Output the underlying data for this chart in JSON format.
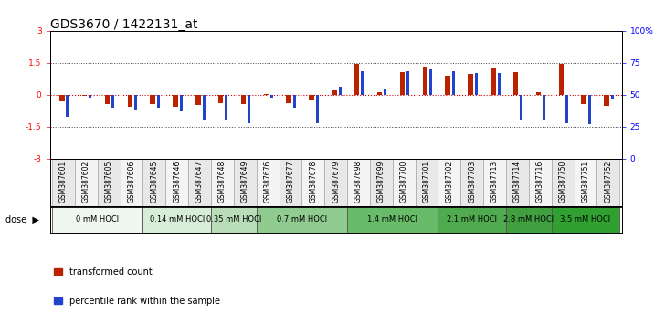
{
  "title": "GDS3670 / 1422131_at",
  "samples": [
    "GSM387601",
    "GSM387602",
    "GSM387605",
    "GSM387606",
    "GSM387645",
    "GSM387646",
    "GSM387647",
    "GSM387648",
    "GSM387649",
    "GSM387676",
    "GSM387677",
    "GSM387678",
    "GSM387679",
    "GSM387698",
    "GSM387699",
    "GSM387700",
    "GSM387701",
    "GSM387702",
    "GSM387703",
    "GSM387713",
    "GSM387714",
    "GSM387716",
    "GSM387750",
    "GSM387751",
    "GSM387752"
  ],
  "red_values": [
    -0.3,
    -0.05,
    -0.45,
    -0.55,
    -0.45,
    -0.55,
    -0.5,
    -0.38,
    -0.45,
    0.05,
    -0.38,
    -0.28,
    0.22,
    1.45,
    0.1,
    1.05,
    1.3,
    0.88,
    0.98,
    1.28,
    1.05,
    0.12,
    1.45,
    -0.42,
    -0.52
  ],
  "blue_values_pct": [
    33,
    48,
    40,
    38,
    40,
    37,
    30,
    30,
    28,
    48,
    40,
    28,
    56,
    68,
    55,
    68,
    70,
    68,
    67,
    67,
    30,
    30,
    28,
    27,
    47
  ],
  "dose_groups": [
    {
      "label": "0 mM HOCl",
      "start": 0,
      "end": 4,
      "color": "#f0f7f0"
    },
    {
      "label": "0.14 mM HOCl",
      "start": 4,
      "end": 7,
      "color": "#d8edd8"
    },
    {
      "label": "0.35 mM HOCl",
      "start": 7,
      "end": 9,
      "color": "#b8ddb8"
    },
    {
      "label": "0.7 mM HOCl",
      "start": 9,
      "end": 13,
      "color": "#90cc90"
    },
    {
      "label": "1.4 mM HOCl",
      "start": 13,
      "end": 17,
      "color": "#68bb68"
    },
    {
      "label": "2.1 mM HOCl",
      "start": 17,
      "end": 20,
      "color": "#50aa50"
    },
    {
      "label": "2.8 mM HOCl",
      "start": 20,
      "end": 22,
      "color": "#40a040"
    },
    {
      "label": "3.5 mM HOCl",
      "start": 22,
      "end": 25,
      "color": "#30a030"
    }
  ],
  "red_color": "#bb2200",
  "blue_color": "#2244cc",
  "ylim_left": [
    -3,
    3
  ],
  "yticks_left": [
    -3,
    -1.5,
    0,
    1.5,
    3
  ],
  "yticks_right_pct": [
    0,
    25,
    50,
    75,
    100
  ],
  "title_fontsize": 10,
  "tick_fontsize": 6.5,
  "sample_fontsize": 5.5,
  "dose_fontsize": 6.0,
  "legend_fontsize": 7
}
